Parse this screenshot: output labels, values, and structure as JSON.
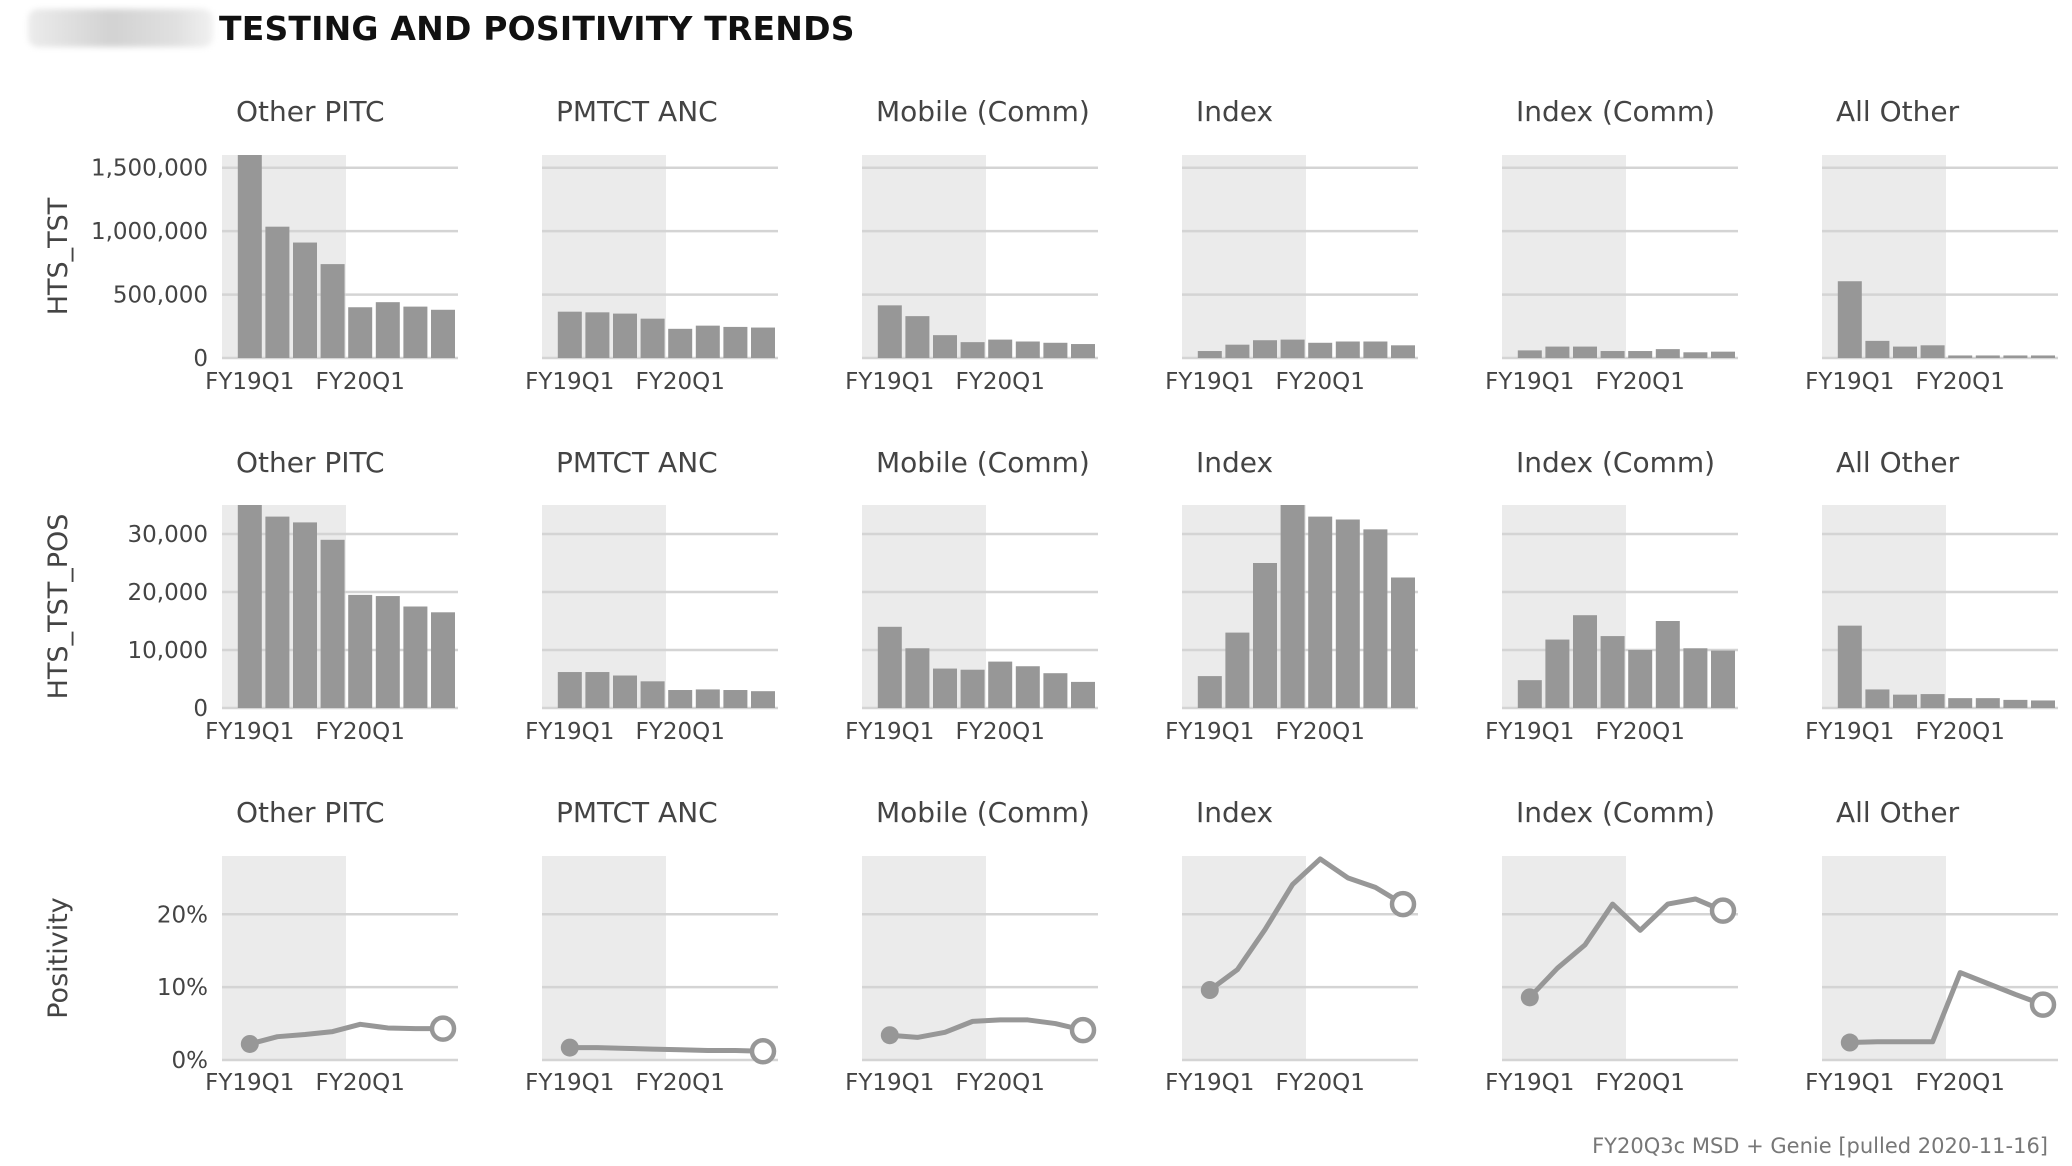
{
  "header": {
    "title": "TESTING AND POSITIVITY TRENDS",
    "caption": "FY20Q3c MSD + Genie [pulled 2020-11-16]"
  },
  "colors": {
    "bar": "#979797",
    "line": "#979797",
    "shade": "#ebebeb",
    "grid": "#d4d4d4"
  },
  "chart_data": [
    {
      "type": "bar",
      "title": "",
      "ylabel": "HTS_TST",
      "y_ticks": [
        0,
        500000,
        1000000,
        1500000
      ],
      "y_tick_labels": [
        "0",
        "500,000",
        "1,000,000",
        "1,500,000"
      ],
      "ylim": [
        0,
        1600000
      ],
      "x_tick_labels": [
        "FY19Q1",
        "FY20Q1"
      ],
      "categories": [
        "FY19Q1",
        "FY19Q2",
        "FY19Q3",
        "FY19Q4",
        "FY20Q1",
        "FY20Q2",
        "FY20Q3",
        "FY20Q4"
      ],
      "shaded_periods": [
        "FY19Q1",
        "FY19Q2",
        "FY19Q3",
        "FY19Q4"
      ],
      "facets": [
        {
          "name": "Other PITC",
          "values": [
            1600000,
            1035000,
            910000,
            740000,
            400000,
            440000,
            405000,
            380000
          ]
        },
        {
          "name": "PMTCT ANC",
          "values": [
            365000,
            360000,
            350000,
            310000,
            230000,
            255000,
            245000,
            240000
          ]
        },
        {
          "name": "Mobile (Comm)",
          "values": [
            415000,
            330000,
            180000,
            125000,
            145000,
            130000,
            120000,
            110000
          ]
        },
        {
          "name": "Index",
          "values": [
            55000,
            105000,
            140000,
            145000,
            120000,
            130000,
            130000,
            100000
          ]
        },
        {
          "name": "Index (Comm)",
          "values": [
            60000,
            90000,
            90000,
            55000,
            55000,
            70000,
            45000,
            50000
          ]
        },
        {
          "name": "All Other",
          "values": [
            605000,
            135000,
            90000,
            100000,
            20000,
            20000,
            20000,
            20000
          ]
        }
      ]
    },
    {
      "type": "bar",
      "title": "",
      "ylabel": "HTS_TST_POS",
      "y_ticks": [
        0,
        10000,
        20000,
        30000
      ],
      "y_tick_labels": [
        "0",
        "10,000",
        "20,000",
        "30,000"
      ],
      "ylim": [
        0,
        35000
      ],
      "x_tick_labels": [
        "FY19Q1",
        "FY20Q1"
      ],
      "categories": [
        "FY19Q1",
        "FY19Q2",
        "FY19Q3",
        "FY19Q4",
        "FY20Q1",
        "FY20Q2",
        "FY20Q3",
        "FY20Q4"
      ],
      "shaded_periods": [
        "FY19Q1",
        "FY19Q2",
        "FY19Q3",
        "FY19Q4"
      ],
      "facets": [
        {
          "name": "Other PITC",
          "values": [
            35000,
            33000,
            32000,
            29000,
            19500,
            19300,
            17500,
            16500
          ]
        },
        {
          "name": "PMTCT ANC",
          "values": [
            6200,
            6200,
            5600,
            4600,
            3100,
            3200,
            3100,
            2900
          ]
        },
        {
          "name": "Mobile (Comm)",
          "values": [
            14000,
            10300,
            6800,
            6600,
            8000,
            7200,
            6000,
            4500
          ]
        },
        {
          "name": "Index",
          "values": [
            5500,
            13000,
            25000,
            35000,
            33000,
            32500,
            30800,
            22500
          ]
        },
        {
          "name": "Index (Comm)",
          "values": [
            4800,
            11800,
            16000,
            12400,
            10000,
            15000,
            10300,
            9900
          ]
        },
        {
          "name": "All Other",
          "values": [
            14200,
            3200,
            2300,
            2400,
            1700,
            1700,
            1400,
            1300
          ]
        }
      ]
    },
    {
      "type": "line",
      "title": "",
      "ylabel": "Positivity",
      "y_ticks": [
        0,
        10,
        20
      ],
      "y_tick_labels": [
        "0%",
        "10%",
        "20%"
      ],
      "ylim": [
        0,
        28
      ],
      "x_tick_labels": [
        "FY19Q1",
        "FY20Q1"
      ],
      "categories": [
        "FY19Q1",
        "FY19Q2",
        "FY19Q3",
        "FY19Q4",
        "FY20Q1",
        "FY20Q2",
        "FY20Q3",
        "FY20Q4"
      ],
      "shaded_periods": [
        "FY19Q1",
        "FY19Q2",
        "FY19Q3",
        "FY19Q4"
      ],
      "facets": [
        {
          "name": "Other PITC",
          "values": [
            2.2,
            3.2,
            3.5,
            3.9,
            4.9,
            4.4,
            4.3,
            4.3
          ]
        },
        {
          "name": "PMTCT ANC",
          "values": [
            1.7,
            1.7,
            1.6,
            1.5,
            1.4,
            1.3,
            1.3,
            1.2
          ]
        },
        {
          "name": "Mobile (Comm)",
          "values": [
            3.4,
            3.1,
            3.8,
            5.3,
            5.5,
            5.5,
            5.0,
            4.1
          ]
        },
        {
          "name": "Index",
          "values": [
            9.6,
            12.4,
            17.9,
            24.1,
            27.6,
            25.0,
            23.7,
            21.4
          ]
        },
        {
          "name": "Index (Comm)",
          "values": [
            8.6,
            12.6,
            15.8,
            21.4,
            17.8,
            21.4,
            22.1,
            20.5
          ]
        },
        {
          "name": "All Other",
          "values": [
            2.4,
            2.5,
            2.5,
            2.5,
            12.0,
            10.5,
            9.0,
            7.6
          ]
        }
      ]
    }
  ]
}
